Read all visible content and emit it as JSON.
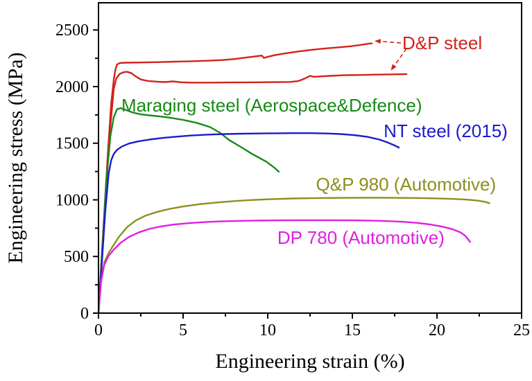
{
  "chart_data": {
    "type": "line",
    "title": "",
    "xlabel": "Engineering strain (%)",
    "ylabel": "Engineering stress (MPa)",
    "xlim": [
      0,
      25
    ],
    "ylim": [
      0,
      2740
    ],
    "x_major_ticks": [
      0,
      5,
      10,
      15,
      20,
      25
    ],
    "x_minor_ticks": [
      2.5,
      7.5,
      12.5,
      17.5,
      22.5
    ],
    "y_major_ticks": [
      0,
      500,
      1000,
      1500,
      2000,
      2500
    ],
    "y_minor_ticks": [
      250,
      750,
      1250,
      1750,
      2250
    ],
    "grid": false,
    "legend_position": "inline-annotations",
    "axis_color": "#000000",
    "series": [
      {
        "name": "D&P steel (upper curve)",
        "color": "#d2231a",
        "points": [
          [
            0,
            0
          ],
          [
            0.15,
            400
          ],
          [
            0.35,
            900
          ],
          [
            0.55,
            1400
          ],
          [
            0.75,
            1850
          ],
          [
            0.9,
            2060
          ],
          [
            1.0,
            2150
          ],
          [
            1.1,
            2195
          ],
          [
            1.25,
            2208
          ],
          [
            1.6,
            2211
          ],
          [
            2.5,
            2213
          ],
          [
            3.5,
            2216
          ],
          [
            4.5,
            2220
          ],
          [
            5.5,
            2224
          ],
          [
            6.5,
            2229
          ],
          [
            7.3,
            2234
          ],
          [
            8.0,
            2243
          ],
          [
            8.8,
            2258
          ],
          [
            9.4,
            2269
          ],
          [
            9.65,
            2274
          ],
          [
            9.78,
            2252
          ],
          [
            9.95,
            2261
          ],
          [
            10.4,
            2277
          ],
          [
            11.0,
            2292
          ],
          [
            11.8,
            2310
          ],
          [
            12.6,
            2325
          ],
          [
            13.4,
            2337
          ],
          [
            14.2,
            2347
          ],
          [
            14.9,
            2356
          ],
          [
            15.5,
            2368
          ],
          [
            16.0,
            2380
          ],
          [
            16.15,
            2381
          ]
        ]
      },
      {
        "name": "D&P steel (lower curve)",
        "color": "#d2231a",
        "points": [
          [
            0,
            0
          ],
          [
            0.2,
            500
          ],
          [
            0.45,
            1100
          ],
          [
            0.7,
            1650
          ],
          [
            0.9,
            1980
          ],
          [
            1.05,
            2070
          ],
          [
            1.25,
            2112
          ],
          [
            1.5,
            2128
          ],
          [
            1.7,
            2130
          ],
          [
            1.95,
            2118
          ],
          [
            2.2,
            2090
          ],
          [
            2.5,
            2063
          ],
          [
            2.9,
            2050
          ],
          [
            3.4,
            2044
          ],
          [
            3.9,
            2040
          ],
          [
            4.4,
            2046
          ],
          [
            4.9,
            2038
          ],
          [
            5.5,
            2035
          ],
          [
            6.5,
            2035
          ],
          [
            7.5,
            2036
          ],
          [
            8.5,
            2037
          ],
          [
            9.5,
            2038
          ],
          [
            10.5,
            2040
          ],
          [
            11.3,
            2041
          ],
          [
            11.8,
            2048
          ],
          [
            12.2,
            2072
          ],
          [
            12.5,
            2094
          ],
          [
            12.75,
            2086
          ],
          [
            13.1,
            2090
          ],
          [
            13.7,
            2095
          ],
          [
            14.5,
            2100
          ],
          [
            15.5,
            2103
          ],
          [
            16.5,
            2106
          ],
          [
            17.5,
            2108
          ],
          [
            18.2,
            2110
          ]
        ]
      },
      {
        "name": "Maraging steel (Aerospace&Defence)",
        "color": "#178a17",
        "points": [
          [
            0,
            0
          ],
          [
            0.2,
            500
          ],
          [
            0.45,
            1150
          ],
          [
            0.7,
            1560
          ],
          [
            0.9,
            1730
          ],
          [
            1.1,
            1800
          ],
          [
            1.3,
            1810
          ],
          [
            1.6,
            1795
          ],
          [
            2.0,
            1772
          ],
          [
            2.5,
            1755
          ],
          [
            3.0,
            1746
          ],
          [
            3.6,
            1737
          ],
          [
            4.2,
            1726
          ],
          [
            5.0,
            1706
          ],
          [
            5.8,
            1680
          ],
          [
            6.6,
            1642
          ],
          [
            7.2,
            1590
          ],
          [
            7.7,
            1530
          ],
          [
            8.4,
            1468
          ],
          [
            9.05,
            1408
          ],
          [
            9.9,
            1338
          ],
          [
            10.4,
            1283
          ],
          [
            10.65,
            1248
          ]
        ]
      },
      {
        "name": "NT steel (2015)",
        "color": "#1b1bcd",
        "points": [
          [
            0,
            0
          ],
          [
            0.2,
            450
          ],
          [
            0.4,
            900
          ],
          [
            0.6,
            1230
          ],
          [
            0.75,
            1350
          ],
          [
            0.9,
            1405
          ],
          [
            1.1,
            1442
          ],
          [
            1.4,
            1472
          ],
          [
            1.8,
            1497
          ],
          [
            2.3,
            1515
          ],
          [
            3.0,
            1532
          ],
          [
            3.8,
            1547
          ],
          [
            4.6,
            1558
          ],
          [
            5.5,
            1568
          ],
          [
            6.5,
            1576
          ],
          [
            7.5,
            1581
          ],
          [
            8.5,
            1584
          ],
          [
            9.5,
            1586
          ],
          [
            10.5,
            1588
          ],
          [
            11.5,
            1589
          ],
          [
            12.5,
            1589
          ],
          [
            13.5,
            1586
          ],
          [
            14.3,
            1581
          ],
          [
            15.1,
            1572
          ],
          [
            15.9,
            1556
          ],
          [
            16.6,
            1532
          ],
          [
            17.1,
            1506
          ],
          [
            17.5,
            1480
          ],
          [
            17.75,
            1462
          ]
        ]
      },
      {
        "name": "Q&P 980 (Automotive)",
        "color": "#8e8e1e",
        "points": [
          [
            0,
            0
          ],
          [
            0.15,
            280
          ],
          [
            0.35,
            450
          ],
          [
            0.6,
            530
          ],
          [
            0.85,
            590
          ],
          [
            1.2,
            672
          ],
          [
            1.7,
            760
          ],
          [
            2.2,
            818
          ],
          [
            2.8,
            862
          ],
          [
            3.5,
            895
          ],
          [
            4.2,
            920
          ],
          [
            5.0,
            941
          ],
          [
            6.0,
            962
          ],
          [
            7.0,
            977
          ],
          [
            8.0,
            989
          ],
          [
            9.0,
            998
          ],
          [
            10.0,
            1005
          ],
          [
            11.5,
            1012
          ],
          [
            13.0,
            1016
          ],
          [
            14.5,
            1018
          ],
          [
            16.0,
            1019
          ],
          [
            17.5,
            1018
          ],
          [
            19.0,
            1016
          ],
          [
            20.0,
            1013
          ],
          [
            21.0,
            1008
          ],
          [
            21.8,
            1002
          ],
          [
            22.4,
            993
          ],
          [
            22.85,
            982
          ],
          [
            23.1,
            970
          ]
        ]
      },
      {
        "name": "DP 780 (Automotive)",
        "color": "#e01fe0",
        "points": [
          [
            0,
            0
          ],
          [
            0.15,
            280
          ],
          [
            0.35,
            430
          ],
          [
            0.6,
            505
          ],
          [
            0.9,
            560
          ],
          [
            1.3,
            620
          ],
          [
            1.8,
            672
          ],
          [
            2.4,
            714
          ],
          [
            3.0,
            743
          ],
          [
            3.7,
            766
          ],
          [
            4.5,
            783
          ],
          [
            5.3,
            794
          ],
          [
            6.2,
            803
          ],
          [
            7.2,
            810
          ],
          [
            8.2,
            814
          ],
          [
            9.2,
            817
          ],
          [
            10.5,
            819
          ],
          [
            12.0,
            820
          ],
          [
            13.5,
            820
          ],
          [
            15.0,
            819
          ],
          [
            16.0,
            817
          ],
          [
            17.0,
            813
          ],
          [
            18.0,
            806
          ],
          [
            18.8,
            797
          ],
          [
            19.6,
            783
          ],
          [
            20.3,
            764
          ],
          [
            20.9,
            741
          ],
          [
            21.4,
            712
          ],
          [
            21.7,
            678
          ],
          [
            21.9,
            640
          ],
          [
            21.95,
            628
          ]
        ]
      }
    ],
    "annotations": [
      {
        "id": "dp-steel-label",
        "text": "D&P steel",
        "color": "#d2231a",
        "x": 17.95,
        "y": 2385,
        "anchor": "start"
      },
      {
        "id": "maraging-steel-label",
        "text": "Maraging steel (Aerospace&Defence)",
        "color": "#178a17",
        "x": 1.35,
        "y": 1835,
        "anchor": "start"
      },
      {
        "id": "nt-steel-label",
        "text": "NT steel (2015)",
        "color": "#1b1bcd",
        "x": 16.85,
        "y": 1608,
        "anchor": "start"
      },
      {
        "id": "qp-980-label",
        "text": "Q&P 980 (Automotive)",
        "color": "#8e8e1e",
        "x": 12.85,
        "y": 1138,
        "anchor": "start"
      },
      {
        "id": "dp-780-label",
        "text": "DP 780 (Automotive)",
        "color": "#e01fe0",
        "x": 10.57,
        "y": 667,
        "anchor": "start"
      }
    ],
    "arrows": [
      {
        "id": "arrow-to-upper-curve",
        "from": [
          17.87,
          2385
        ],
        "to": [
          16.35,
          2403
        ],
        "color": "#d2231a",
        "style": "dashed"
      },
      {
        "id": "arrow-to-lower-curve",
        "from": [
          18.2,
          2336
        ],
        "to": [
          17.3,
          2147
        ],
        "color": "#d2231a",
        "style": "dashed"
      }
    ]
  }
}
